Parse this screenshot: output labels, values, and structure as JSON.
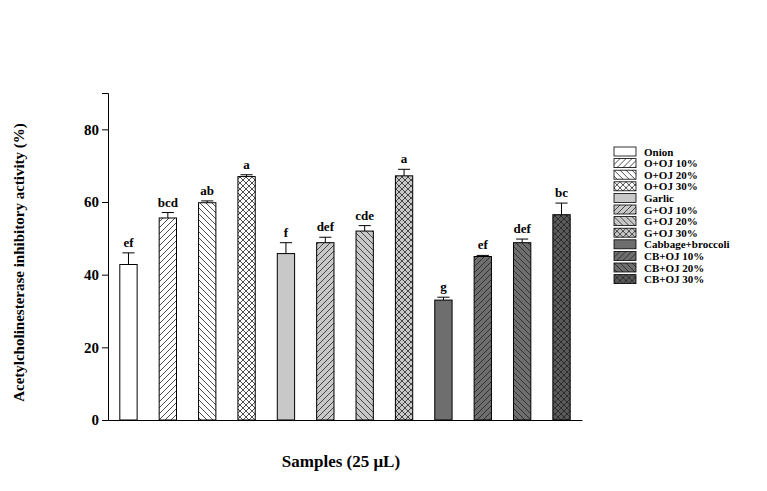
{
  "chart_data": {
    "type": "bar",
    "ylabel": "Acetylcholinesterase inhibitory activity (%)",
    "xlabel": "Samples (25 μL)",
    "categories": [
      "Onion",
      "O+OJ 10%",
      "O+OJ 20%",
      "O+OJ 30%",
      "Garlic",
      "G+OJ 10%",
      "G+OJ 20%",
      "G+OJ 30%",
      "Cabbage+broccoli",
      "CB+OJ 10%",
      "CB+OJ 20%",
      "CB+OJ 30%"
    ],
    "values": [
      42.8,
      55.6,
      59.8,
      67.0,
      45.8,
      48.8,
      52.0,
      67.2,
      33.0,
      45.0,
      48.8,
      56.5
    ],
    "errors": [
      3.2,
      1.5,
      0.5,
      0.5,
      3.0,
      1.5,
      1.5,
      1.8,
      0.8,
      0.3,
      1.0,
      3.2
    ],
    "annotations": [
      "ef",
      "bcd",
      "ab",
      "a",
      "f",
      "def",
      "cde",
      "a",
      "g",
      "ef",
      "def",
      "bc"
    ],
    "colors": [
      "#ffffff",
      "#ffffff",
      "#ffffff",
      "#ffffff",
      "#c8c8c8",
      "#c8c8c8",
      "#c8c8c8",
      "#c8c8c8",
      "#6e6e6e",
      "#6e6e6e",
      "#6e6e6e",
      "#5a5a5a"
    ],
    "ylim": [
      0,
      90
    ],
    "yticks": [
      0,
      20,
      40,
      60,
      80
    ],
    "legend": "right",
    "tick_labels": "y"
  }
}
